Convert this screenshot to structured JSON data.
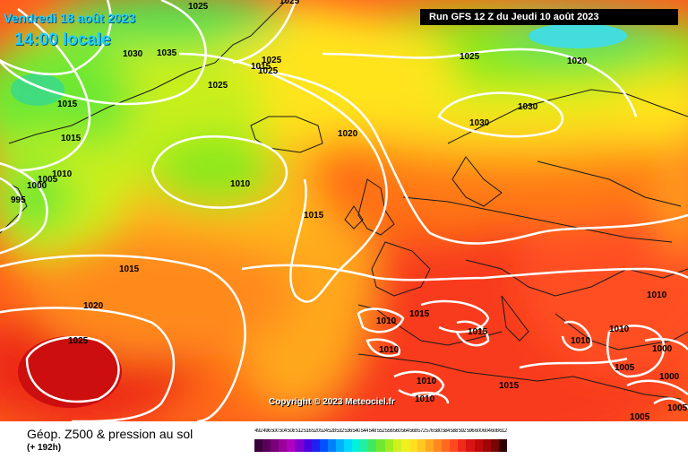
{
  "header": {
    "date": "Vendredi 18 août 2023",
    "local_time": "14:00 locale",
    "run": "Run GFS 12 Z du Jeudi 10 août 2023"
  },
  "footer": {
    "title": "Géop. Z500 & pression au sol",
    "offset": "(+ 192h)",
    "copyright": "Copyright © 2023 Meteociel.fr"
  },
  "isobars": [
    "1025",
    "1025",
    "1030",
    "1035",
    "1025",
    "1015",
    "1025",
    "1025",
    "1015",
    "1015",
    "1010",
    "1005",
    "1000",
    "995",
    "1010",
    "1020",
    "1015",
    "1025",
    "1020",
    "1030",
    "1030",
    "1015",
    "1020",
    "1025",
    "1010",
    "1015",
    "1015",
    "1010",
    "1010",
    "1010",
    "1010",
    "1000",
    "1005",
    "1000",
    "1005",
    "1005",
    "1010",
    "1010",
    "1015"
  ],
  "scale": {
    "labels": [
      "492",
      "496",
      "500",
      "504",
      "508",
      "512",
      "516",
      "520",
      "524",
      "528",
      "532",
      "536",
      "540",
      "544",
      "548",
      "552",
      "556",
      "560",
      "564",
      "568",
      "572",
      "576",
      "580",
      "584",
      "588",
      "592",
      "596",
      "600",
      "604",
      "608",
      "612"
    ],
    "colors": [
      "#3a003a",
      "#5a005a",
      "#7a007a",
      "#9a009a",
      "#b000c0",
      "#8000d0",
      "#5000e0",
      "#2020f0",
      "#0050ff",
      "#0080ff",
      "#00b0ff",
      "#00d8ff",
      "#00f0e0",
      "#20f0a0",
      "#40e860",
      "#70e830",
      "#a0ec20",
      "#d0f020",
      "#f0f020",
      "#ffe020",
      "#ffc820",
      "#ffa820",
      "#ff8820",
      "#ff6a20",
      "#ff4a20",
      "#f02a1a",
      "#d81414",
      "#c00a0a",
      "#a00606",
      "#780404",
      "#300000"
    ]
  }
}
